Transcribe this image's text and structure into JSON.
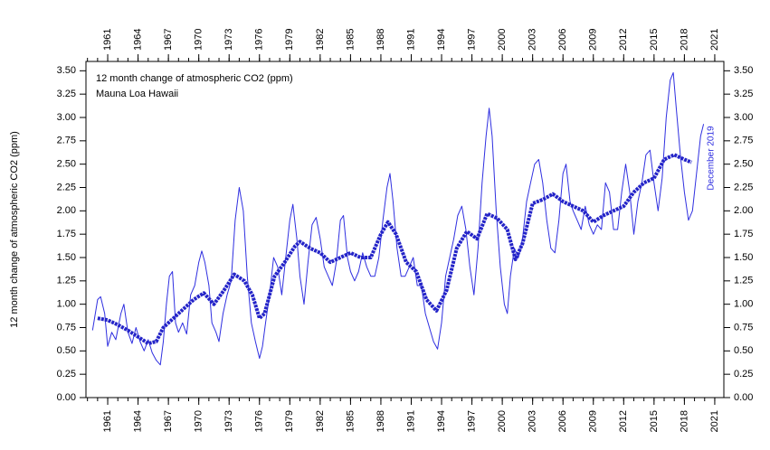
{
  "chart_data": {
    "type": "line",
    "title": "12 month change of atmospheric CO2 (ppm)",
    "subtitle": "Mauna Loa Hawaii",
    "y_label": "12 month change of atmospheric CO2 (ppm)",
    "annotation": "December 2019",
    "xlim": [
      1958.85,
      2021.9
    ],
    "ylim": [
      0,
      3.6
    ],
    "xticks": [
      1961,
      1964,
      1967,
      1970,
      1973,
      1976,
      1979,
      1982,
      1985,
      1988,
      1991,
      1994,
      1997,
      2000,
      2003,
      2006,
      2009,
      2012,
      2015,
      2018,
      2021
    ],
    "yticks": [
      {
        "value": 0,
        "label": "0.00"
      },
      {
        "value": 0.25,
        "label": "0.25"
      },
      {
        "value": 0.5,
        "label": "0.50"
      },
      {
        "value": 0.75,
        "label": "0.75"
      },
      {
        "value": 1,
        "label": "1.00"
      },
      {
        "value": 1.25,
        "label": "1.25"
      },
      {
        "value": 1.5,
        "label": "1.50"
      },
      {
        "value": 1.75,
        "label": "1.75"
      },
      {
        "value": 2,
        "label": "2.00"
      },
      {
        "value": 2.25,
        "label": "2.25"
      },
      {
        "value": 2.5,
        "label": "2.50"
      },
      {
        "value": 2.75,
        "label": "2.75"
      },
      {
        "value": 3,
        "label": "3.00"
      },
      {
        "value": 3.25,
        "label": "3.25"
      },
      {
        "value": 3.5,
        "label": "3.50"
      }
    ],
    "series": [
      {
        "color": "#2f2fe0",
        "width": 1,
        "x": [
          1959.5,
          1960.0,
          1960.3,
          1960.7,
          1961.0,
          1961.4,
          1961.8,
          1962.3,
          1962.6,
          1963.0,
          1963.4,
          1963.8,
          1964.2,
          1964.6,
          1965.0,
          1965.4,
          1965.8,
          1966.2,
          1966.5,
          1966.8,
          1967.1,
          1967.4,
          1967.7,
          1968.0,
          1968.4,
          1968.8,
          1969.2,
          1969.6,
          1970.0,
          1970.3,
          1970.6,
          1971.0,
          1971.3,
          1971.7,
          1972.0,
          1972.4,
          1972.8,
          1973.2,
          1973.6,
          1974.0,
          1974.4,
          1974.8,
          1975.2,
          1975.6,
          1976.0,
          1976.3,
          1976.6,
          1977.0,
          1977.4,
          1977.8,
          1978.2,
          1978.6,
          1979.0,
          1979.3,
          1979.7,
          1980.0,
          1980.4,
          1980.8,
          1981.2,
          1981.6,
          1982.0,
          1982.4,
          1982.8,
          1983.2,
          1983.6,
          1984.0,
          1984.3,
          1984.7,
          1985.0,
          1985.4,
          1985.8,
          1986.2,
          1986.6,
          1987.0,
          1987.4,
          1987.8,
          1988.2,
          1988.6,
          1988.9,
          1989.2,
          1989.6,
          1990.0,
          1990.4,
          1990.8,
          1991.2,
          1991.6,
          1992.0,
          1992.4,
          1992.8,
          1993.2,
          1993.6,
          1994.0,
          1994.4,
          1994.8,
          1995.2,
          1995.6,
          1996.0,
          1996.4,
          1996.8,
          1997.2,
          1997.6,
          1998.0,
          1998.4,
          1998.7,
          1999.0,
          1999.4,
          1999.8,
          2000.2,
          2000.5,
          2000.8,
          2001.2,
          2001.6,
          2002.0,
          2002.4,
          2002.8,
          2003.2,
          2003.6,
          2004.0,
          2004.4,
          2004.8,
          2005.2,
          2005.6,
          2006.0,
          2006.3,
          2006.7,
          2007.0,
          2007.4,
          2007.8,
          2008.2,
          2008.6,
          2009.0,
          2009.4,
          2009.8,
          2010.2,
          2010.6,
          2011.0,
          2011.4,
          2011.8,
          2012.2,
          2012.6,
          2013.0,
          2013.4,
          2013.8,
          2014.2,
          2014.6,
          2015.0,
          2015.4,
          2015.8,
          2016.2,
          2016.6,
          2016.9,
          2017.2,
          2017.6,
          2018.0,
          2018.4,
          2018.8,
          2019.2,
          2019.6,
          2019.9
        ],
        "values": [
          0.72,
          1.05,
          1.08,
          0.9,
          0.55,
          0.7,
          0.62,
          0.9,
          1.0,
          0.7,
          0.58,
          0.75,
          0.6,
          0.5,
          0.62,
          0.48,
          0.4,
          0.35,
          0.6,
          1.0,
          1.3,
          1.35,
          0.8,
          0.7,
          0.8,
          0.68,
          1.1,
          1.2,
          1.45,
          1.57,
          1.45,
          1.2,
          0.8,
          0.7,
          0.6,
          0.9,
          1.1,
          1.25,
          1.9,
          2.25,
          2.0,
          1.3,
          0.8,
          0.6,
          0.42,
          0.55,
          0.8,
          1.1,
          1.5,
          1.4,
          1.1,
          1.5,
          1.9,
          2.07,
          1.7,
          1.3,
          1.0,
          1.45,
          1.85,
          1.93,
          1.7,
          1.4,
          1.3,
          1.2,
          1.45,
          1.9,
          1.95,
          1.5,
          1.35,
          1.25,
          1.35,
          1.55,
          1.4,
          1.3,
          1.3,
          1.5,
          1.9,
          2.25,
          2.4,
          2.1,
          1.6,
          1.3,
          1.3,
          1.4,
          1.5,
          1.2,
          1.2,
          0.9,
          0.75,
          0.6,
          0.52,
          0.8,
          1.3,
          1.5,
          1.7,
          1.95,
          2.05,
          1.8,
          1.4,
          1.1,
          1.6,
          2.3,
          2.8,
          3.1,
          2.8,
          2.0,
          1.4,
          1.0,
          0.9,
          1.3,
          1.6,
          1.5,
          1.7,
          2.1,
          2.3,
          2.5,
          2.55,
          2.3,
          1.9,
          1.6,
          1.55,
          1.9,
          2.4,
          2.5,
          2.1,
          2.0,
          1.9,
          1.8,
          2.05,
          1.85,
          1.75,
          1.85,
          1.8,
          2.3,
          2.2,
          1.8,
          1.8,
          2.2,
          2.5,
          2.2,
          1.75,
          2.1,
          2.3,
          2.6,
          2.65,
          2.3,
          2.0,
          2.35,
          3.0,
          3.4,
          3.48,
          3.1,
          2.6,
          2.2,
          1.9,
          2.0,
          2.4,
          2.8,
          2.93
        ]
      },
      {
        "color": "#2424c8",
        "width": 4,
        "x": [
          1960,
          1961,
          1962,
          1963,
          1964,
          1965,
          1965.8,
          1966.5,
          1967.5,
          1968.5,
          1969.5,
          1970.5,
          1971.5,
          1972.5,
          1973.5,
          1974.5,
          1975.3,
          1976,
          1976.5,
          1977.5,
          1978.5,
          1979.5,
          1980,
          1981,
          1982,
          1983,
          1984,
          1985,
          1986,
          1987,
          1988,
          1988.7,
          1989.5,
          1990.5,
          1991.5,
          1992.5,
          1993.5,
          1994.5,
          1995.5,
          1996.5,
          1997.5,
          1998.5,
          1999.5,
          2000.5,
          2001.3,
          2002,
          2003,
          2004,
          2005,
          2006,
          2007,
          2008,
          2009,
          2010,
          2011,
          2012,
          2013,
          2014,
          2015,
          2016,
          2017,
          2018,
          2018.7
        ],
        "values": [
          0.85,
          0.83,
          0.78,
          0.72,
          0.65,
          0.58,
          0.6,
          0.75,
          0.85,
          0.95,
          1.05,
          1.12,
          1.0,
          1.15,
          1.32,
          1.25,
          1.1,
          0.85,
          0.9,
          1.3,
          1.45,
          1.62,
          1.67,
          1.6,
          1.55,
          1.45,
          1.5,
          1.55,
          1.5,
          1.5,
          1.75,
          1.88,
          1.75,
          1.45,
          1.35,
          1.05,
          0.93,
          1.15,
          1.6,
          1.78,
          1.7,
          1.97,
          1.92,
          1.8,
          1.48,
          1.65,
          2.08,
          2.12,
          2.18,
          2.1,
          2.05,
          2.0,
          1.88,
          1.95,
          2.0,
          2.05,
          2.2,
          2.3,
          2.35,
          2.55,
          2.6,
          2.55,
          2.52
        ]
      }
    ]
  }
}
